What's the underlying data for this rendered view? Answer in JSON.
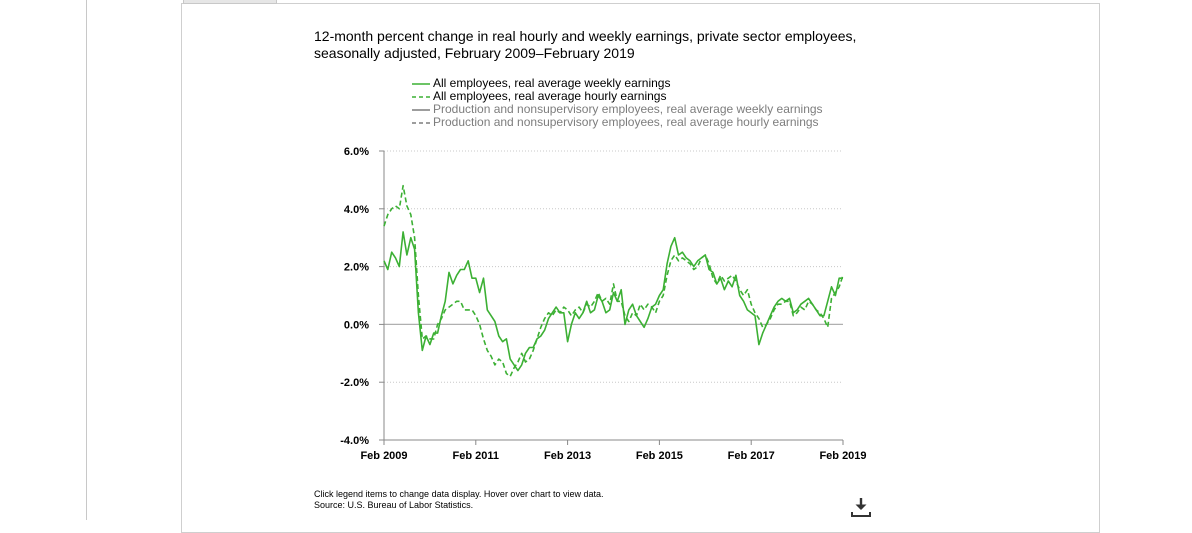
{
  "chart_data": {
    "type": "line",
    "title": "12-month percent change in real hourly and weekly earnings, private sector employees, seasonally adjusted, February 2009–February 2019",
    "ylim": [
      -4.0,
      6.0
    ],
    "y_ticks": [
      "6.0%",
      "4.0%",
      "2.0%",
      "0.0%",
      "-2.0%",
      "-4.0%"
    ],
    "y_tick_values": [
      6,
      4,
      2,
      0,
      -2,
      -4
    ],
    "x_ticks": [
      "Feb 2009",
      "Feb 2011",
      "Feb 2013",
      "Feb 2015",
      "Feb 2017",
      "Feb 2019"
    ],
    "x_tick_values": [
      2009.0833,
      2011.0833,
      2013.0833,
      2015.0833,
      2017.0833,
      2019.0833
    ],
    "xlim": [
      2009.0833,
      2019.0833
    ],
    "grid": "horizontal dotted",
    "legend_position": "top",
    "series": [
      {
        "name": "All employees, real average weekly earnings",
        "color": "#3cb034",
        "dash": "solid",
        "visible": true,
        "x": [
          2009.0833,
          2009.1667,
          2009.25,
          2009.3333,
          2009.4167,
          2009.5,
          2009.5833,
          2009.6667,
          2009.75,
          2009.8333,
          2009.9167,
          2010.0,
          2010.0833,
          2010.1667,
          2010.25,
          2010.3333,
          2010.4167,
          2010.5,
          2010.5833,
          2010.6667,
          2010.75,
          2010.8333,
          2010.9167,
          2011.0,
          2011.0833,
          2011.1667,
          2011.25,
          2011.3333,
          2011.4167,
          2011.5,
          2011.5833,
          2011.6667,
          2011.75,
          2011.8333,
          2011.9167,
          2012.0,
          2012.0833,
          2012.1667,
          2012.25,
          2012.3333,
          2012.4167,
          2012.5,
          2012.5833,
          2012.6667,
          2012.75,
          2012.8333,
          2012.9167,
          2013.0,
          2013.0833,
          2013.1667,
          2013.25,
          2013.3333,
          2013.4167,
          2013.5,
          2013.5833,
          2013.6667,
          2013.75,
          2013.8333,
          2013.9167,
          2014.0,
          2014.0833,
          2014.1667,
          2014.25,
          2014.3333,
          2014.4167,
          2014.5,
          2014.5833,
          2014.6667,
          2014.75,
          2014.8333,
          2014.9167,
          2015.0,
          2015.0833,
          2015.1667,
          2015.25,
          2015.3333,
          2015.4167,
          2015.5,
          2015.5833,
          2015.6667,
          2015.75,
          2015.8333,
          2015.9167,
          2016.0,
          2016.0833,
          2016.1667,
          2016.25,
          2016.3333,
          2016.4167,
          2016.5,
          2016.5833,
          2016.6667,
          2016.75,
          2016.8333,
          2016.9167,
          2017.0,
          2017.0833,
          2017.1667,
          2017.25,
          2017.3333,
          2017.4167,
          2017.5,
          2017.5833,
          2017.6667,
          2017.75,
          2017.8333,
          2017.9167,
          2018.0,
          2018.0833,
          2018.1667,
          2018.25,
          2018.3333,
          2018.4167,
          2018.5,
          2018.5833,
          2018.6667,
          2018.75,
          2018.8333,
          2018.9167,
          2019.0,
          2019.0833
        ],
        "values": [
          2.2,
          1.9,
          2.5,
          2.3,
          2.0,
          3.2,
          2.4,
          3.0,
          2.6,
          0.4,
          -0.9,
          -0.4,
          -0.7,
          -0.3,
          -0.3,
          0.3,
          0.8,
          1.8,
          1.4,
          1.7,
          1.9,
          1.9,
          2.2,
          1.6,
          1.6,
          1.1,
          1.6,
          0.5,
          0.3,
          0.1,
          -0.4,
          -0.6,
          -0.5,
          -1.2,
          -1.4,
          -1.6,
          -1.4,
          -1.0,
          -0.8,
          -0.8,
          -0.5,
          -0.4,
          -0.2,
          0.2,
          0.4,
          0.6,
          0.4,
          0.4,
          -0.6,
          0.0,
          0.4,
          0.2,
          0.4,
          0.8,
          0.4,
          0.5,
          1.0,
          0.8,
          0.4,
          0.5,
          1.1,
          0.8,
          1.2,
          0.0,
          0.5,
          0.7,
          0.3,
          0.1,
          -0.1,
          0.2,
          0.6,
          0.7,
          1.0,
          1.2,
          2.1,
          2.7,
          3.0,
          2.4,
          2.5,
          2.3,
          2.2,
          2.0,
          2.2,
          2.3,
          2.4,
          1.9,
          1.8,
          1.4,
          1.6,
          1.2,
          1.5,
          1.3,
          1.7,
          1.0,
          0.8,
          0.5,
          0.4,
          0.3,
          -0.7,
          -0.3,
          0.0,
          0.3,
          0.6,
          0.8,
          0.9,
          0.8,
          0.9,
          0.4,
          0.5,
          0.7,
          0.8,
          0.9,
          0.7,
          0.5,
          0.3,
          0.3,
          0.8,
          1.3,
          1.0,
          1.6,
          1.6
        ]
      },
      {
        "name": "All employees, real average hourly earnings",
        "color": "#3cb034",
        "dash": "dashed",
        "visible": true,
        "x": [
          2009.0833,
          2009.1667,
          2009.25,
          2009.3333,
          2009.4167,
          2009.5,
          2009.5833,
          2009.6667,
          2009.75,
          2009.8333,
          2009.9167,
          2010.0,
          2010.0833,
          2010.1667,
          2010.25,
          2010.3333,
          2010.4167,
          2010.5,
          2010.5833,
          2010.6667,
          2010.75,
          2010.8333,
          2010.9167,
          2011.0,
          2011.0833,
          2011.1667,
          2011.25,
          2011.3333,
          2011.4167,
          2011.5,
          2011.5833,
          2011.6667,
          2011.75,
          2011.8333,
          2011.9167,
          2012.0,
          2012.0833,
          2012.1667,
          2012.25,
          2012.3333,
          2012.4167,
          2012.5,
          2012.5833,
          2012.6667,
          2012.75,
          2012.8333,
          2012.9167,
          2013.0,
          2013.0833,
          2013.1667,
          2013.25,
          2013.3333,
          2013.4167,
          2013.5,
          2013.5833,
          2013.6667,
          2013.75,
          2013.8333,
          2013.9167,
          2014.0,
          2014.0833,
          2014.1667,
          2014.25,
          2014.3333,
          2014.4167,
          2014.5,
          2014.5833,
          2014.6667,
          2014.75,
          2014.8333,
          2014.9167,
          2015.0,
          2015.0833,
          2015.1667,
          2015.25,
          2015.3333,
          2015.4167,
          2015.5,
          2015.5833,
          2015.6667,
          2015.75,
          2015.8333,
          2015.9167,
          2016.0,
          2016.0833,
          2016.1667,
          2016.25,
          2016.3333,
          2016.4167,
          2016.5,
          2016.5833,
          2016.6667,
          2016.75,
          2016.8333,
          2016.9167,
          2017.0,
          2017.0833,
          2017.1667,
          2017.25,
          2017.3333,
          2017.4167,
          2017.5,
          2017.5833,
          2017.6667,
          2017.75,
          2017.8333,
          2017.9167,
          2018.0,
          2018.0833,
          2018.1667,
          2018.25,
          2018.3333,
          2018.4167,
          2018.5,
          2018.5833,
          2018.6667,
          2018.75,
          2018.8333,
          2018.9167,
          2019.0,
          2019.0833
        ],
        "values": [
          3.4,
          3.8,
          4.0,
          4.1,
          4.0,
          4.8,
          4.1,
          3.8,
          3.0,
          1.0,
          -0.5,
          -0.4,
          -0.5,
          -0.5,
          0.0,
          0.2,
          0.5,
          0.6,
          0.7,
          0.8,
          0.8,
          0.5,
          0.5,
          0.5,
          0.3,
          0.0,
          -0.5,
          -0.9,
          -1.1,
          -1.4,
          -1.2,
          -1.3,
          -1.7,
          -1.8,
          -1.5,
          -1.3,
          -1.0,
          -1.3,
          -1.2,
          -0.9,
          -0.5,
          -0.1,
          0.2,
          0.4,
          0.3,
          0.5,
          0.4,
          0.6,
          0.5,
          0.3,
          0.5,
          0.6,
          0.4,
          0.7,
          0.6,
          0.8,
          1.1,
          0.8,
          0.9,
          0.7,
          1.4,
          0.8,
          0.8,
          0.3,
          0.1,
          0.4,
          0.3,
          0.7,
          0.5,
          0.7,
          0.6,
          0.4,
          0.8,
          1.0,
          1.7,
          2.2,
          2.4,
          2.2,
          2.3,
          2.2,
          2.1,
          1.9,
          2.0,
          2.3,
          2.4,
          2.1,
          1.6,
          1.4,
          1.7,
          1.5,
          1.6,
          1.7,
          1.5,
          1.2,
          1.0,
          1.2,
          0.7,
          0.4,
          0.2,
          -0.1,
          0.0,
          0.2,
          0.5,
          0.7,
          0.7,
          0.8,
          0.8,
          0.3,
          0.4,
          0.6,
          0.5,
          0.8,
          0.7,
          0.5,
          0.4,
          0.2,
          -0.1,
          0.9,
          1.1,
          1.3,
          1.7
        ]
      },
      {
        "name": "Production and nonsupervisory employees, real average weekly earnings",
        "color": "#7d7d7d",
        "dash": "solid",
        "visible": false
      },
      {
        "name": "Production and nonsupervisory employees, real average hourly earnings",
        "color": "#7d7d7d",
        "dash": "dashed",
        "visible": false
      }
    ]
  },
  "footnote": {
    "instructions": "Click legend items to change data display. Hover over chart to view data.",
    "source": "Source: U.S. Bureau of Labor Statistics."
  },
  "toolbar": {
    "download_icon": "download-icon"
  }
}
